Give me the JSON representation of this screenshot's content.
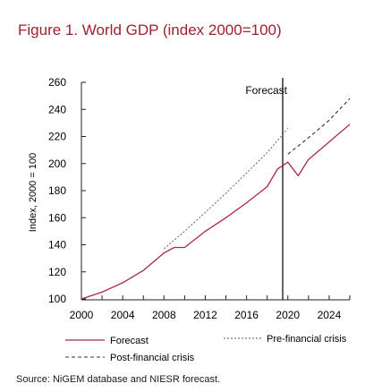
{
  "figure": {
    "title": "Figure 1. World GDP (index 2000=100)",
    "source": "Source: NiGEM database and NIESR forecast."
  },
  "chart_data": {
    "type": "line",
    "title": "Figure 1. World GDP (index 2000=100)",
    "xlabel": "",
    "ylabel": "Index, 2000 = 100",
    "xlim": [
      2000,
      2026
    ],
    "ylim": [
      100,
      260
    ],
    "xticks": [
      2000,
      2004,
      2008,
      2012,
      2016,
      2020,
      2024
    ],
    "yticks": [
      100,
      120,
      140,
      160,
      180,
      200,
      220,
      240,
      260
    ],
    "grid": false,
    "legend_position": "bottom",
    "annotations": [
      {
        "text": "Forecast",
        "x": 2019.5
      }
    ],
    "series": [
      {
        "name": "Forecast",
        "style": "solid",
        "color": "#a8284a",
        "x": [
          2000,
          2002,
          2004,
          2006,
          2008,
          2009,
          2010,
          2012,
          2014,
          2016,
          2018,
          2019,
          2020,
          2021,
          2022,
          2024,
          2026
        ],
        "y": [
          100,
          105,
          112,
          121,
          134,
          138,
          138,
          150,
          160,
          171,
          183,
          196,
          201,
          191,
          203,
          216,
          229
        ]
      },
      {
        "name": "Pre-financial crisis",
        "style": "dashed",
        "color": "#555555",
        "x": [
          2008,
          2010,
          2012,
          2014,
          2016,
          2018,
          2020
        ],
        "y": [
          137,
          150,
          164,
          178,
          193,
          208,
          226
        ]
      },
      {
        "name": "Post-financial crisis",
        "style": "dashed",
        "color": "#333333",
        "x": [
          2020,
          2022,
          2024,
          2026
        ],
        "y": [
          207,
          219,
          232,
          248
        ]
      }
    ]
  }
}
